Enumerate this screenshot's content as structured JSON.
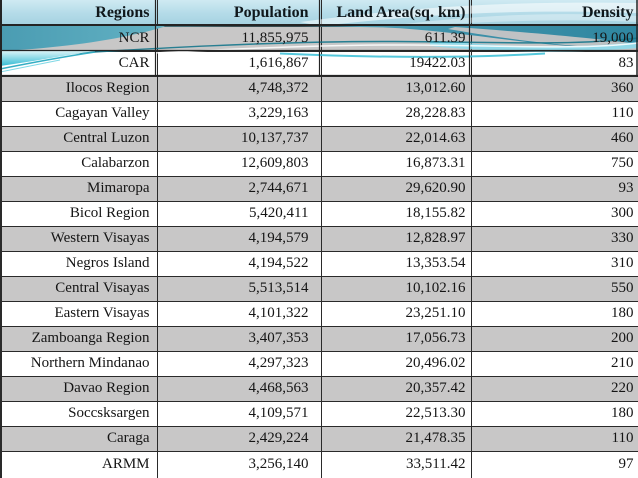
{
  "chart_data": {
    "type": "table",
    "title": "",
    "columns": [
      "Regions",
      "Population",
      "Land Area(sq. km)",
      "Density"
    ],
    "rows": [
      [
        "NCR",
        "11,855,975",
        "611.39",
        "19,000"
      ],
      [
        "CAR",
        "1,616,867",
        "19422.03",
        "83"
      ],
      [
        "Ilocos Region",
        "4,748,372",
        "13,012.60",
        "360"
      ],
      [
        "Cagayan Valley",
        "3,229,163",
        "28,228.83",
        "110"
      ],
      [
        "Central Luzon",
        "10,137,737",
        "22,014.63",
        "460"
      ],
      [
        "Calabarzon",
        "12,609,803",
        "16,873.31",
        "750"
      ],
      [
        "Mimaropa",
        "2,744,671",
        "29,620.90",
        "93"
      ],
      [
        "Bicol Region",
        "5,420,411",
        "18,155.82",
        "300"
      ],
      [
        "Western Visayas",
        "4,194,579",
        "12,828.97",
        "330"
      ],
      [
        "Negros Island",
        "4,194,522",
        "13,353.54",
        "310"
      ],
      [
        "Central Visayas",
        "5,513,514",
        "10,102.16",
        "550"
      ],
      [
        "Eastern Visayas",
        "4,101,322",
        "23,251.10",
        "180"
      ],
      [
        "Zamboanga  Region",
        "3,407,353",
        "17,056.73",
        "200"
      ],
      [
        "Northern Mindanao",
        "4,297,323",
        "20,496.02",
        "210"
      ],
      [
        "Davao Region",
        "4,468,563",
        "20,357.42",
        "220"
      ],
      [
        "Soccsksargen",
        "4,109,571",
        "22,513.30",
        "180"
      ],
      [
        "Caraga",
        "2,429,224",
        "21,478.35",
        "110"
      ],
      [
        "ARMM",
        "3,256,140",
        "33,511.42",
        "97"
      ]
    ]
  },
  "colors": {
    "header_blue": "#b4dbe8",
    "row_gray": "#c8c7c7",
    "row_white": "#ffffff",
    "border": "#2a2a2a",
    "accent_teal_dark": "#2f86a0",
    "accent_teal": "#4a9cb2",
    "accent_cyan": "#43c2d8",
    "accent_cyan_light": "#8adced"
  }
}
